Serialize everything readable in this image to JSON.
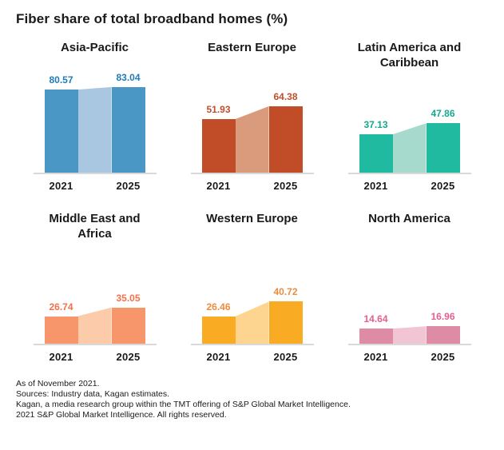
{
  "page_title": "Fiber share of total broadband homes (%)",
  "chart_data": {
    "type": "bar",
    "title": "Fiber share of total broadband homes (%)",
    "categories": [
      "2021",
      "2025"
    ],
    "ylim": [
      0,
      90
    ],
    "grid": false,
    "legend": "none",
    "value_labels": "above bars",
    "charts": [
      {
        "region": "Asia-Pacific",
        "values": [
          80.57,
          83.04
        ],
        "bar_color": "#4a97c6",
        "span_color": "#a9c7e1",
        "label_color": "#1f7cb8"
      },
      {
        "region": "Eastern Europe",
        "values": [
          51.93,
          64.38
        ],
        "bar_color": "#c04c28",
        "span_color": "#da9b7d",
        "label_color": "#c0502c"
      },
      {
        "region": "Latin America and Caribbean",
        "values": [
          37.13,
          47.86
        ],
        "bar_color": "#1fbaa0",
        "span_color": "#a5dacd",
        "label_color": "#15a88c"
      },
      {
        "region": "Middle East and Africa",
        "values": [
          26.74,
          35.05
        ],
        "bar_color": "#f8966b",
        "span_color": "#fccbaa",
        "label_color": "#f3714b"
      },
      {
        "region": "Western Europe",
        "values": [
          26.46,
          40.72
        ],
        "bar_color": "#faab24",
        "span_color": "#fed491",
        "label_color": "#ee8c3d"
      },
      {
        "region": "North America",
        "values": [
          14.64,
          16.96
        ],
        "bar_color": "#de8ba6",
        "span_color": "#f1c5d3",
        "label_color": "#e55e92"
      }
    ]
  },
  "footnotes": {
    "lines": [
      "As of November 2021.",
      "Sources: Industry data, Kagan estimates.",
      "Kagan, a media research group within the TMT offering of S&P Global Market Intelligence.",
      "2021 S&P Global Market Intelligence. All rights reserved."
    ]
  }
}
